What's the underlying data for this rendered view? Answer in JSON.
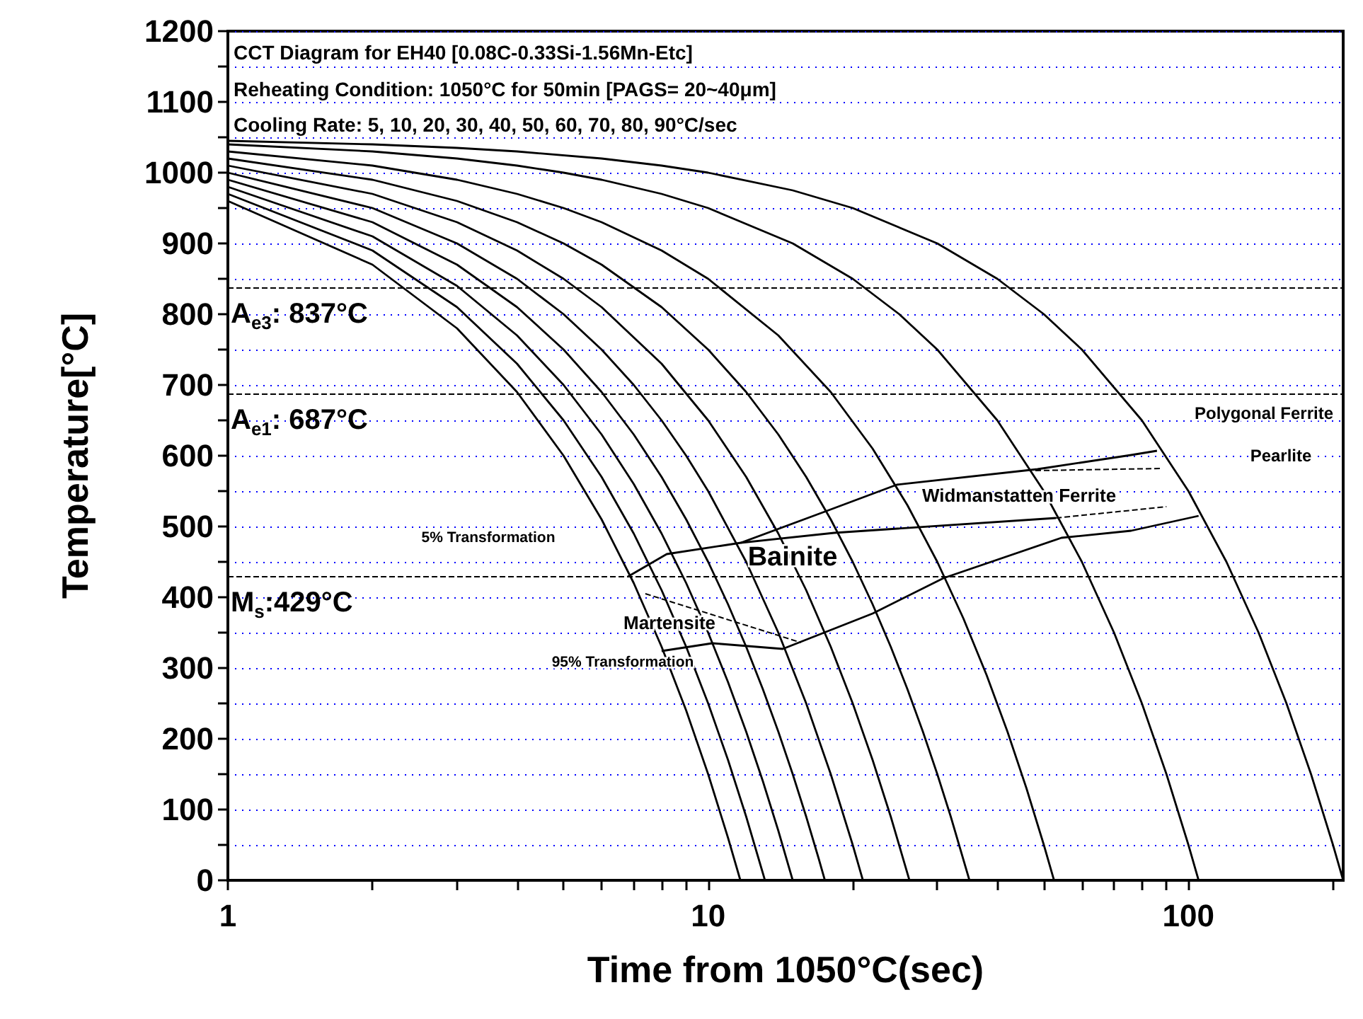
{
  "chart_data": {
    "type": "line",
    "xlabel": "Time from 1050°C(sec)",
    "ylabel": "Temperature[°C]",
    "log": "x",
    "grid": "y",
    "xlim": [
      1,
      210
    ],
    "xticks": [
      1,
      {
        "value": 2,
        "label": null
      },
      {
        "value": 3,
        "label": null
      },
      {
        "value": 4,
        "label": null
      },
      {
        "value": 5,
        "label": null
      },
      {
        "value": 6,
        "label": null
      },
      {
        "value": 7,
        "label": null
      },
      {
        "value": 8,
        "label": null
      },
      {
        "value": 9,
        "label": null
      },
      10,
      {
        "value": 20,
        "label": null
      },
      {
        "value": 30,
        "label": null
      },
      {
        "value": 40,
        "label": null
      },
      {
        "value": 50,
        "label": null
      },
      {
        "value": 60,
        "label": null
      },
      {
        "value": 70,
        "label": null
      },
      {
        "value": 80,
        "label": null
      },
      {
        "value": 90,
        "label": null
      },
      100,
      {
        "value": 200,
        "label": null
      }
    ],
    "ylim": [
      0,
      1200
    ],
    "yticks": [
      0,
      {
        "value": 50,
        "label": null
      },
      100,
      {
        "value": 150,
        "label": null
      },
      200,
      {
        "value": 250,
        "label": null
      },
      300,
      {
        "value": 350,
        "label": null
      },
      400,
      {
        "value": 450,
        "label": null
      },
      500,
      {
        "value": 550,
        "label": null
      },
      600,
      {
        "value": 650,
        "label": null
      },
      700,
      {
        "value": 750,
        "label": null
      },
      800,
      {
        "value": 850,
        "label": null
      },
      900,
      {
        "value": 950,
        "label": null
      },
      1000,
      {
        "value": 1050,
        "label": null
      },
      1100,
      {
        "value": 1150,
        "label": null
      },
      1200
    ],
    "series": [
      {
        "color": "#000000",
        "x": [
          1,
          2,
          3,
          4,
          5,
          6,
          7,
          8,
          9,
          10,
          11,
          11.67
        ],
        "values": [
          960,
          870,
          780,
          690,
          600,
          510,
          420,
          330,
          240,
          150,
          60,
          0
        ]
      },
      {
        "color": "#000000",
        "x": [
          1,
          2,
          3,
          4,
          5,
          6,
          7,
          8,
          9,
          10,
          11,
          12,
          13,
          13.13
        ],
        "values": [
          970,
          890,
          810,
          730,
          650,
          570,
          490,
          410,
          330,
          250,
          170,
          90,
          10,
          0
        ]
      },
      {
        "color": "#000000",
        "x": [
          1,
          2,
          3,
          4,
          5,
          6,
          7,
          8,
          9,
          10,
          11,
          12,
          13,
          14,
          15
        ],
        "values": [
          980,
          910,
          840,
          770,
          700,
          630,
          560,
          490,
          420,
          350,
          280,
          210,
          140,
          70,
          0
        ]
      },
      {
        "color": "#000000",
        "x": [
          1,
          2,
          3,
          4,
          5,
          6,
          7,
          8,
          9,
          10,
          11,
          12,
          13,
          14,
          15,
          16,
          17,
          17.5
        ],
        "values": [
          990,
          930,
          870,
          810,
          750,
          690,
          630,
          570,
          510,
          450,
          390,
          330,
          270,
          210,
          150,
          90,
          30,
          0
        ]
      },
      {
        "color": "#000000",
        "x": [
          1,
          2,
          3,
          4,
          5,
          6,
          7,
          8,
          9,
          10,
          12,
          14,
          16,
          18,
          20,
          21
        ],
        "values": [
          1000,
          950,
          900,
          850,
          800,
          750,
          700,
          650,
          600,
          550,
          450,
          350,
          250,
          150,
          50,
          0
        ]
      },
      {
        "color": "#000000",
        "x": [
          1,
          2,
          3,
          4,
          5,
          6,
          8,
          10,
          12,
          14,
          16,
          18,
          20,
          22,
          24,
          26.25
        ],
        "values": [
          1010,
          970,
          930,
          890,
          850,
          810,
          730,
          650,
          570,
          490,
          410,
          330,
          250,
          170,
          90,
          0
        ]
      },
      {
        "color": "#000000",
        "x": [
          1,
          2,
          3,
          4,
          5,
          6,
          8,
          10,
          12,
          14,
          16,
          18,
          20,
          22,
          24,
          26,
          28,
          30,
          32,
          35
        ],
        "values": [
          1020,
          990,
          960,
          930,
          900,
          870,
          810,
          750,
          690,
          630,
          570,
          510,
          450,
          390,
          330,
          270,
          210,
          150,
          90,
          0
        ]
      },
      {
        "color": "#000000",
        "x": [
          1,
          2,
          3,
          4,
          5,
          6,
          8,
          10,
          14,
          18,
          22,
          26,
          30,
          34,
          38,
          42,
          46,
          50,
          52.5
        ],
        "values": [
          1030,
          1010,
          990,
          970,
          950,
          930,
          890,
          850,
          770,
          690,
          610,
          530,
          450,
          370,
          290,
          210,
          130,
          50,
          0
        ]
      },
      {
        "color": "#000000",
        "x": [
          1,
          2,
          3,
          4,
          5,
          6,
          8,
          10,
          15,
          20,
          25,
          30,
          40,
          50,
          60,
          70,
          80,
          90,
          100,
          105
        ],
        "values": [
          1040,
          1030,
          1020,
          1010,
          1000,
          990,
          970,
          950,
          900,
          850,
          800,
          750,
          650,
          550,
          450,
          350,
          250,
          150,
          50,
          0
        ]
      },
      {
        "color": "#000000",
        "x": [
          1,
          2,
          3,
          4,
          6,
          8,
          10,
          15,
          20,
          30,
          40,
          50,
          60,
          80,
          100,
          120,
          140,
          160,
          180,
          200,
          210
        ],
        "values": [
          1045,
          1040,
          1035,
          1030,
          1020,
          1010,
          1000,
          975,
          950,
          900,
          850,
          800,
          750,
          650,
          550,
          450,
          350,
          250,
          150,
          50,
          0
        ]
      },
      {
        "color": "#000000",
        "x": [
          6.8,
          8.2,
          11.7,
          17.5,
          24.7,
          48.5,
          76,
          86
        ],
        "values": [
          429,
          461,
          477,
          521,
          559,
          581,
          601,
          607
        ]
      },
      {
        "color": "#000000",
        "x": [
          11.7,
          18.3,
          53
        ],
        "values": [
          477,
          491,
          512
        ]
      },
      {
        "color": "#000000",
        "x": [
          8,
          10.2,
          14.3,
          22,
          30.9,
          54.4,
          76,
          105
        ],
        "values": [
          324,
          335,
          327,
          377,
          427,
          484,
          494,
          515
        ]
      },
      {
        "color": "#000000",
        "line_style": "dashed",
        "x": [
          48,
          88
        ],
        "values": [
          579,
          582
        ]
      },
      {
        "color": "#000000",
        "line_style": "dashed",
        "x": [
          53,
          90
        ],
        "values": [
          512,
          528
        ]
      },
      {
        "color": "#000000",
        "line_style": "dashed",
        "x": [
          7.4,
          15.6
        ],
        "values": [
          405,
          336
        ]
      }
    ],
    "ref_lines": [
      {
        "axis": "y",
        "value": 837,
        "label": "A$_{e3}$: 837°C",
        "color": "#000000",
        "line_style": "dashed"
      },
      {
        "axis": "y",
        "value": 687,
        "label": "A$_{e1}$: 687°C",
        "color": "#000000",
        "line_style": "dashed"
      },
      {
        "axis": "y",
        "value": 429,
        "label": "M$_{s}$:429°C",
        "color": "#000000",
        "line_style": "dashed"
      }
    ],
    "annotations": [
      "CCT Diagram for EH40 [0.08C-0.33Si-1.56Mn-Etc]",
      "Reheating Condition: 1050°C for 50min [PAGS= 20~40μm]",
      "Cooling Rate: 5, 10, 20, 30, 40, 50, 60, 70, 80, 90°C/sec",
      "Polygonal Ferrite",
      "Pearlite",
      "Widmanstatten Ferrite",
      "5% Transformation",
      "Bainite",
      "Martensite",
      "95% Transformation"
    ]
  }
}
